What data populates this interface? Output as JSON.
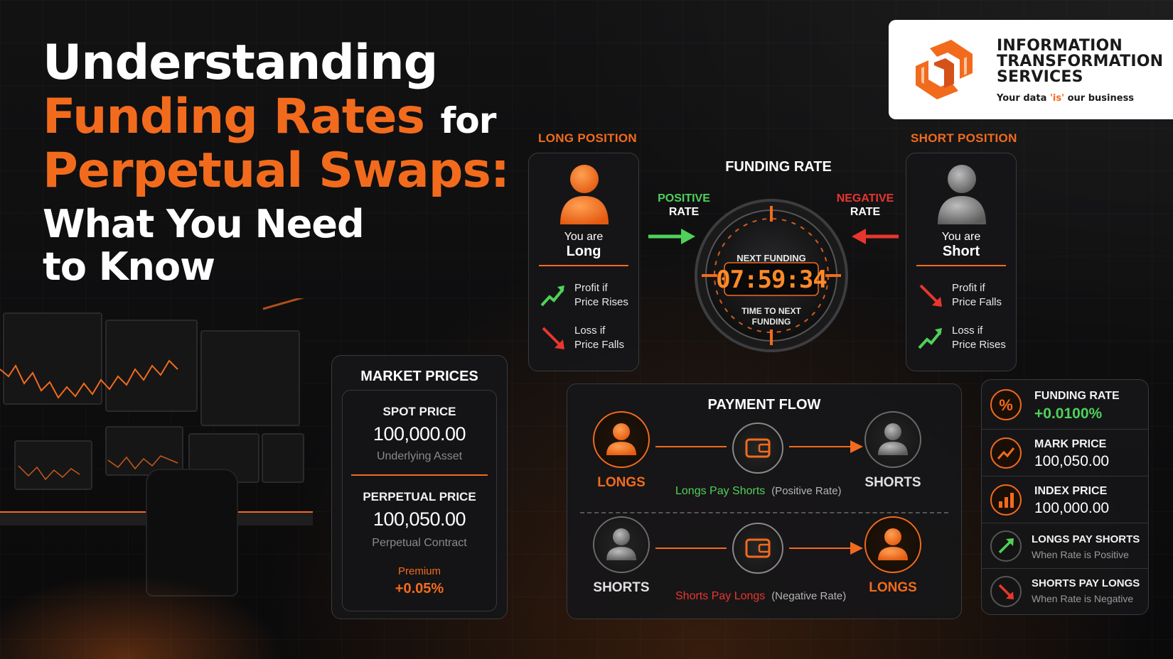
{
  "headline": {
    "line1": "Understanding",
    "line2_accent": "Funding Rates",
    "line2_tail": "for",
    "line3": "Perpetual Swaps:",
    "line4": "What You Need",
    "line5": "to Know"
  },
  "logo": {
    "name_lines": [
      "INFORMATION",
      "TRANSFORMATION",
      "SERVICES"
    ],
    "tagline_before": "Your data ",
    "tagline_is": "'is'",
    "tagline_after": " our business"
  },
  "long_card": {
    "section_label": "LONG POSITION",
    "you_are": "You are",
    "role": "Long",
    "items": [
      {
        "text_a": "Profit if",
        "text_b": "Price Rises",
        "arrow": "trend-up-icon"
      },
      {
        "text_a": "Loss if",
        "text_b": "Price Falls",
        "arrow": "trend-down-icon"
      }
    ]
  },
  "short_card": {
    "section_label": "SHORT POSITION",
    "you_are": "You are",
    "role": "Short",
    "items": [
      {
        "text_a": "Profit if",
        "text_b": "Price Falls",
        "arrow": "trend-down-icon"
      },
      {
        "text_a": "Loss if",
        "text_b": "Price Rises",
        "arrow": "trend-up-icon"
      }
    ]
  },
  "dial": {
    "title": "FUNDING RATE",
    "positive_a": "POSITIVE",
    "positive_b": "RATE",
    "negative_a": "NEGATIVE",
    "negative_b": "RATE",
    "next_label": "NEXT FUNDING",
    "time": "07:59:34",
    "until_a": "TIME TO NEXT",
    "until_b": "FUNDING"
  },
  "market_prices": {
    "title": "MARKET PRICES",
    "spot_label": "SPOT PRICE",
    "spot_value": "100,000.00",
    "spot_sub": "Underlying Asset",
    "perp_label": "PERPETUAL PRICE",
    "perp_value": "100,050.00",
    "perp_sub": "Perpetual Contract",
    "premium_label": "Premium",
    "premium_value": "+0.05%"
  },
  "payment_flow": {
    "title": "PAYMENT FLOW",
    "top": {
      "from": "LONGS",
      "to": "SHORTS",
      "caption": "Longs Pay Shorts",
      "note": "(Positive Rate)"
    },
    "bottom": {
      "from": "SHORTS",
      "to": "LONGS",
      "caption": "Shorts Pay Longs",
      "note": "(Negative Rate)"
    }
  },
  "metrics": [
    {
      "label": "FUNDING RATE",
      "value": "+0.0100%",
      "icon": "percent-icon"
    },
    {
      "label": "MARK PRICE",
      "value": "100,050.00",
      "icon": "trend-chart-icon"
    },
    {
      "label": "INDEX PRICE",
      "value": "100,000.00",
      "icon": "bar-chart-icon"
    },
    {
      "label": "LONGS PAY SHORTS",
      "sub": "When Rate is Positive",
      "icon": "arrow-up-right-icon"
    },
    {
      "label": "SHORTS PAY LONGS",
      "sub": "When Rate is Negative",
      "icon": "arrow-down-right-icon"
    }
  ],
  "colors": {
    "accent": "#f26b1d",
    "positive": "#4fd15a",
    "negative": "#e8362e",
    "panel": "#161618",
    "background": "#0b0b0c"
  }
}
